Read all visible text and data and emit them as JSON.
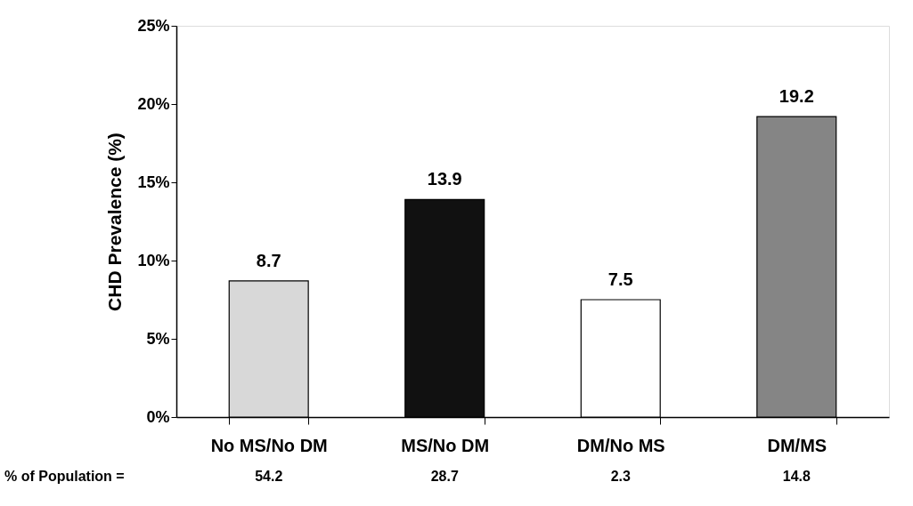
{
  "chart_data": {
    "type": "bar",
    "ylabel": "CHD Prevalence (%)",
    "categories": [
      "No MS/No DM",
      "MS/No DM",
      "DM/No MS",
      "DM/MS"
    ],
    "values": [
      8.7,
      13.9,
      7.5,
      19.2
    ],
    "colors": [
      "#d8d8d8",
      "#111111",
      "#ffffff",
      "#858585"
    ],
    "data_labels": true,
    "ylim": [
      0,
      25
    ],
    "yticks": [
      {
        "value": 0,
        "label": "0%"
      },
      {
        "value": 5,
        "label": "5%"
      },
      {
        "value": 10,
        "label": "10%"
      },
      {
        "value": 15,
        "label": "15%"
      },
      {
        "value": 20,
        "label": "20%"
      },
      {
        "value": 25,
        "label": "25%"
      }
    ],
    "grid": false,
    "annotations": [
      "% of Population =",
      "54.2",
      "28.7",
      "2.3",
      "14.8"
    ]
  }
}
